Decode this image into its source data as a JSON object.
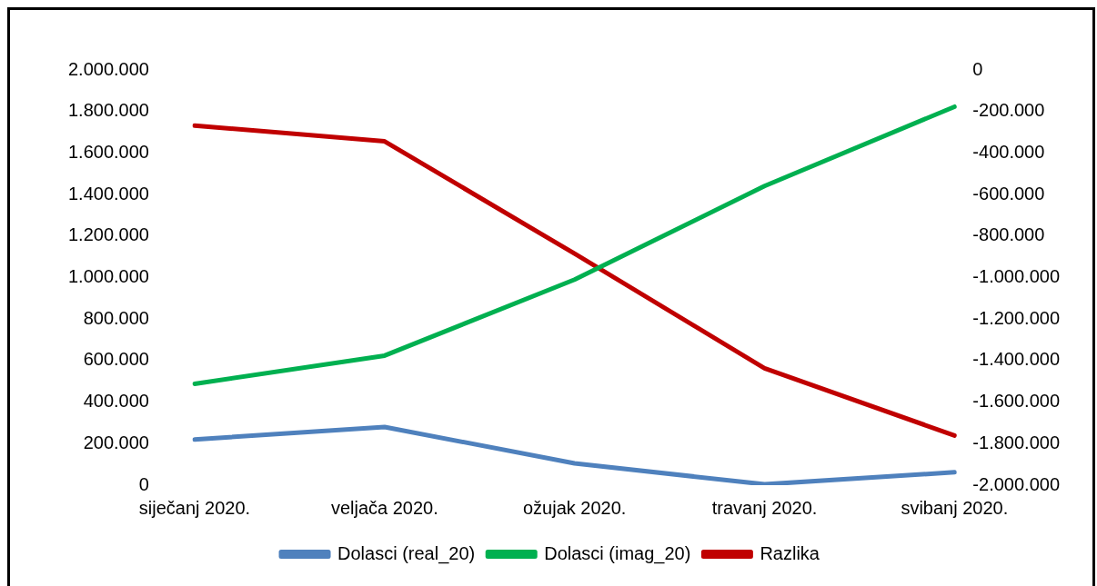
{
  "chart_data": {
    "type": "line",
    "categories": [
      "siječanj 2020.",
      "veljača 2020.",
      "ožujak 2020.",
      "travanj 2020.",
      "svibanj 2020."
    ],
    "series": [
      {
        "name": "Dolasci (real_20)",
        "color": "#4f81bd",
        "values": [
          220000,
          280000,
          105000,
          4000,
          62000
        ]
      },
      {
        "name": "Dolasci (imag_20)",
        "color": "#00b050",
        "values": [
          488000,
          624000,
          990000,
          1441000,
          1823000
        ]
      },
      {
        "name": "Razlika",
        "color": "#c00000",
        "axis": "y2",
        "values": [
          -268000,
          -344000,
          -885000,
          -1437000,
          -1761000
        ]
      }
    ],
    "ylim": [
      0,
      2000000
    ],
    "yticks": [
      {
        "value": 0,
        "label": "0"
      },
      {
        "value": 200000,
        "label": "200.000"
      },
      {
        "value": 400000,
        "label": "400.000"
      },
      {
        "value": 600000,
        "label": "600.000"
      },
      {
        "value": 800000,
        "label": "800.000"
      },
      {
        "value": 1000000,
        "label": "1.000.000"
      },
      {
        "value": 1200000,
        "label": "1.200.000"
      },
      {
        "value": 1400000,
        "label": "1.400.000"
      },
      {
        "value": 1600000,
        "label": "1.600.000"
      },
      {
        "value": 1800000,
        "label": "1.800.000"
      },
      {
        "value": 2000000,
        "label": "2.000.000"
      }
    ],
    "y2lim": [
      -2000000,
      0
    ],
    "y2ticks": [
      {
        "value": -2000000,
        "label": "-2.000.000"
      },
      {
        "value": -1800000,
        "label": "-1.800.000"
      },
      {
        "value": -1600000,
        "label": "-1.600.000"
      },
      {
        "value": -1400000,
        "label": "-1.400.000"
      },
      {
        "value": -1200000,
        "label": "-1.200.000"
      },
      {
        "value": -1000000,
        "label": "-1.000.000"
      },
      {
        "value": -800000,
        "label": "-800.000"
      },
      {
        "value": -600000,
        "label": "-600.000"
      },
      {
        "value": -400000,
        "label": "-400.000"
      },
      {
        "value": -200000,
        "label": "-200.000"
      },
      {
        "value": 0,
        "label": "0"
      }
    ],
    "grid": false,
    "legend": "bottom",
    "marker": "none",
    "line_style": "solid"
  }
}
